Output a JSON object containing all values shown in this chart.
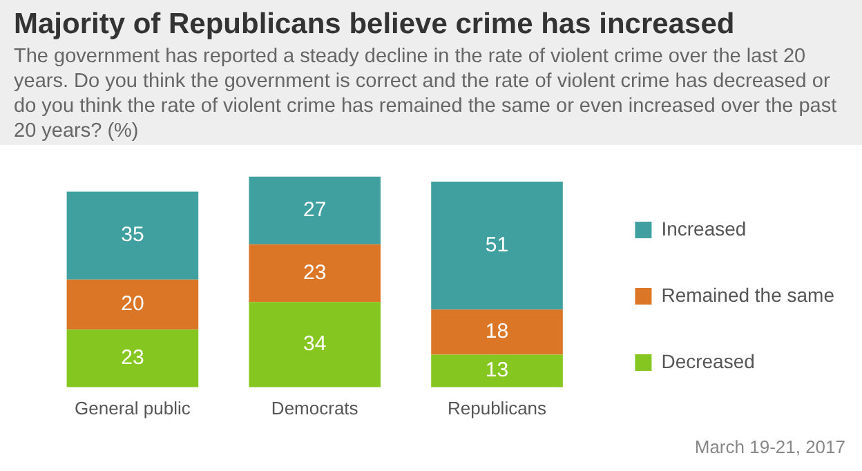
{
  "chart_data": {
    "type": "bar",
    "title": "Majority of Republicans believe crime has increased",
    "subtitle": "The government has reported a steady decline in the rate of violent crime over the last 20 years. Do you think the government is correct and the rate of violent crime has decreased or do you think the rate of violent crime has remained the same or even increased over the past 20 years? (%)",
    "categories": [
      "General public",
      "Democrats",
      "Republicans"
    ],
    "stacked": true,
    "series": [
      {
        "name": "Decreased",
        "color": "#86c620",
        "values": [
          23,
          34,
          13
        ]
      },
      {
        "name": "Remained the same",
        "color": "#db7627",
        "values": [
          20,
          23,
          18
        ]
      },
      {
        "name": "Increased",
        "color": "#40a09f",
        "values": [
          35,
          27,
          51
        ]
      }
    ],
    "data_labels": true,
    "legend": "right",
    "grid": false,
    "annotations": [
      "March 19-21, 2017"
    ]
  }
}
